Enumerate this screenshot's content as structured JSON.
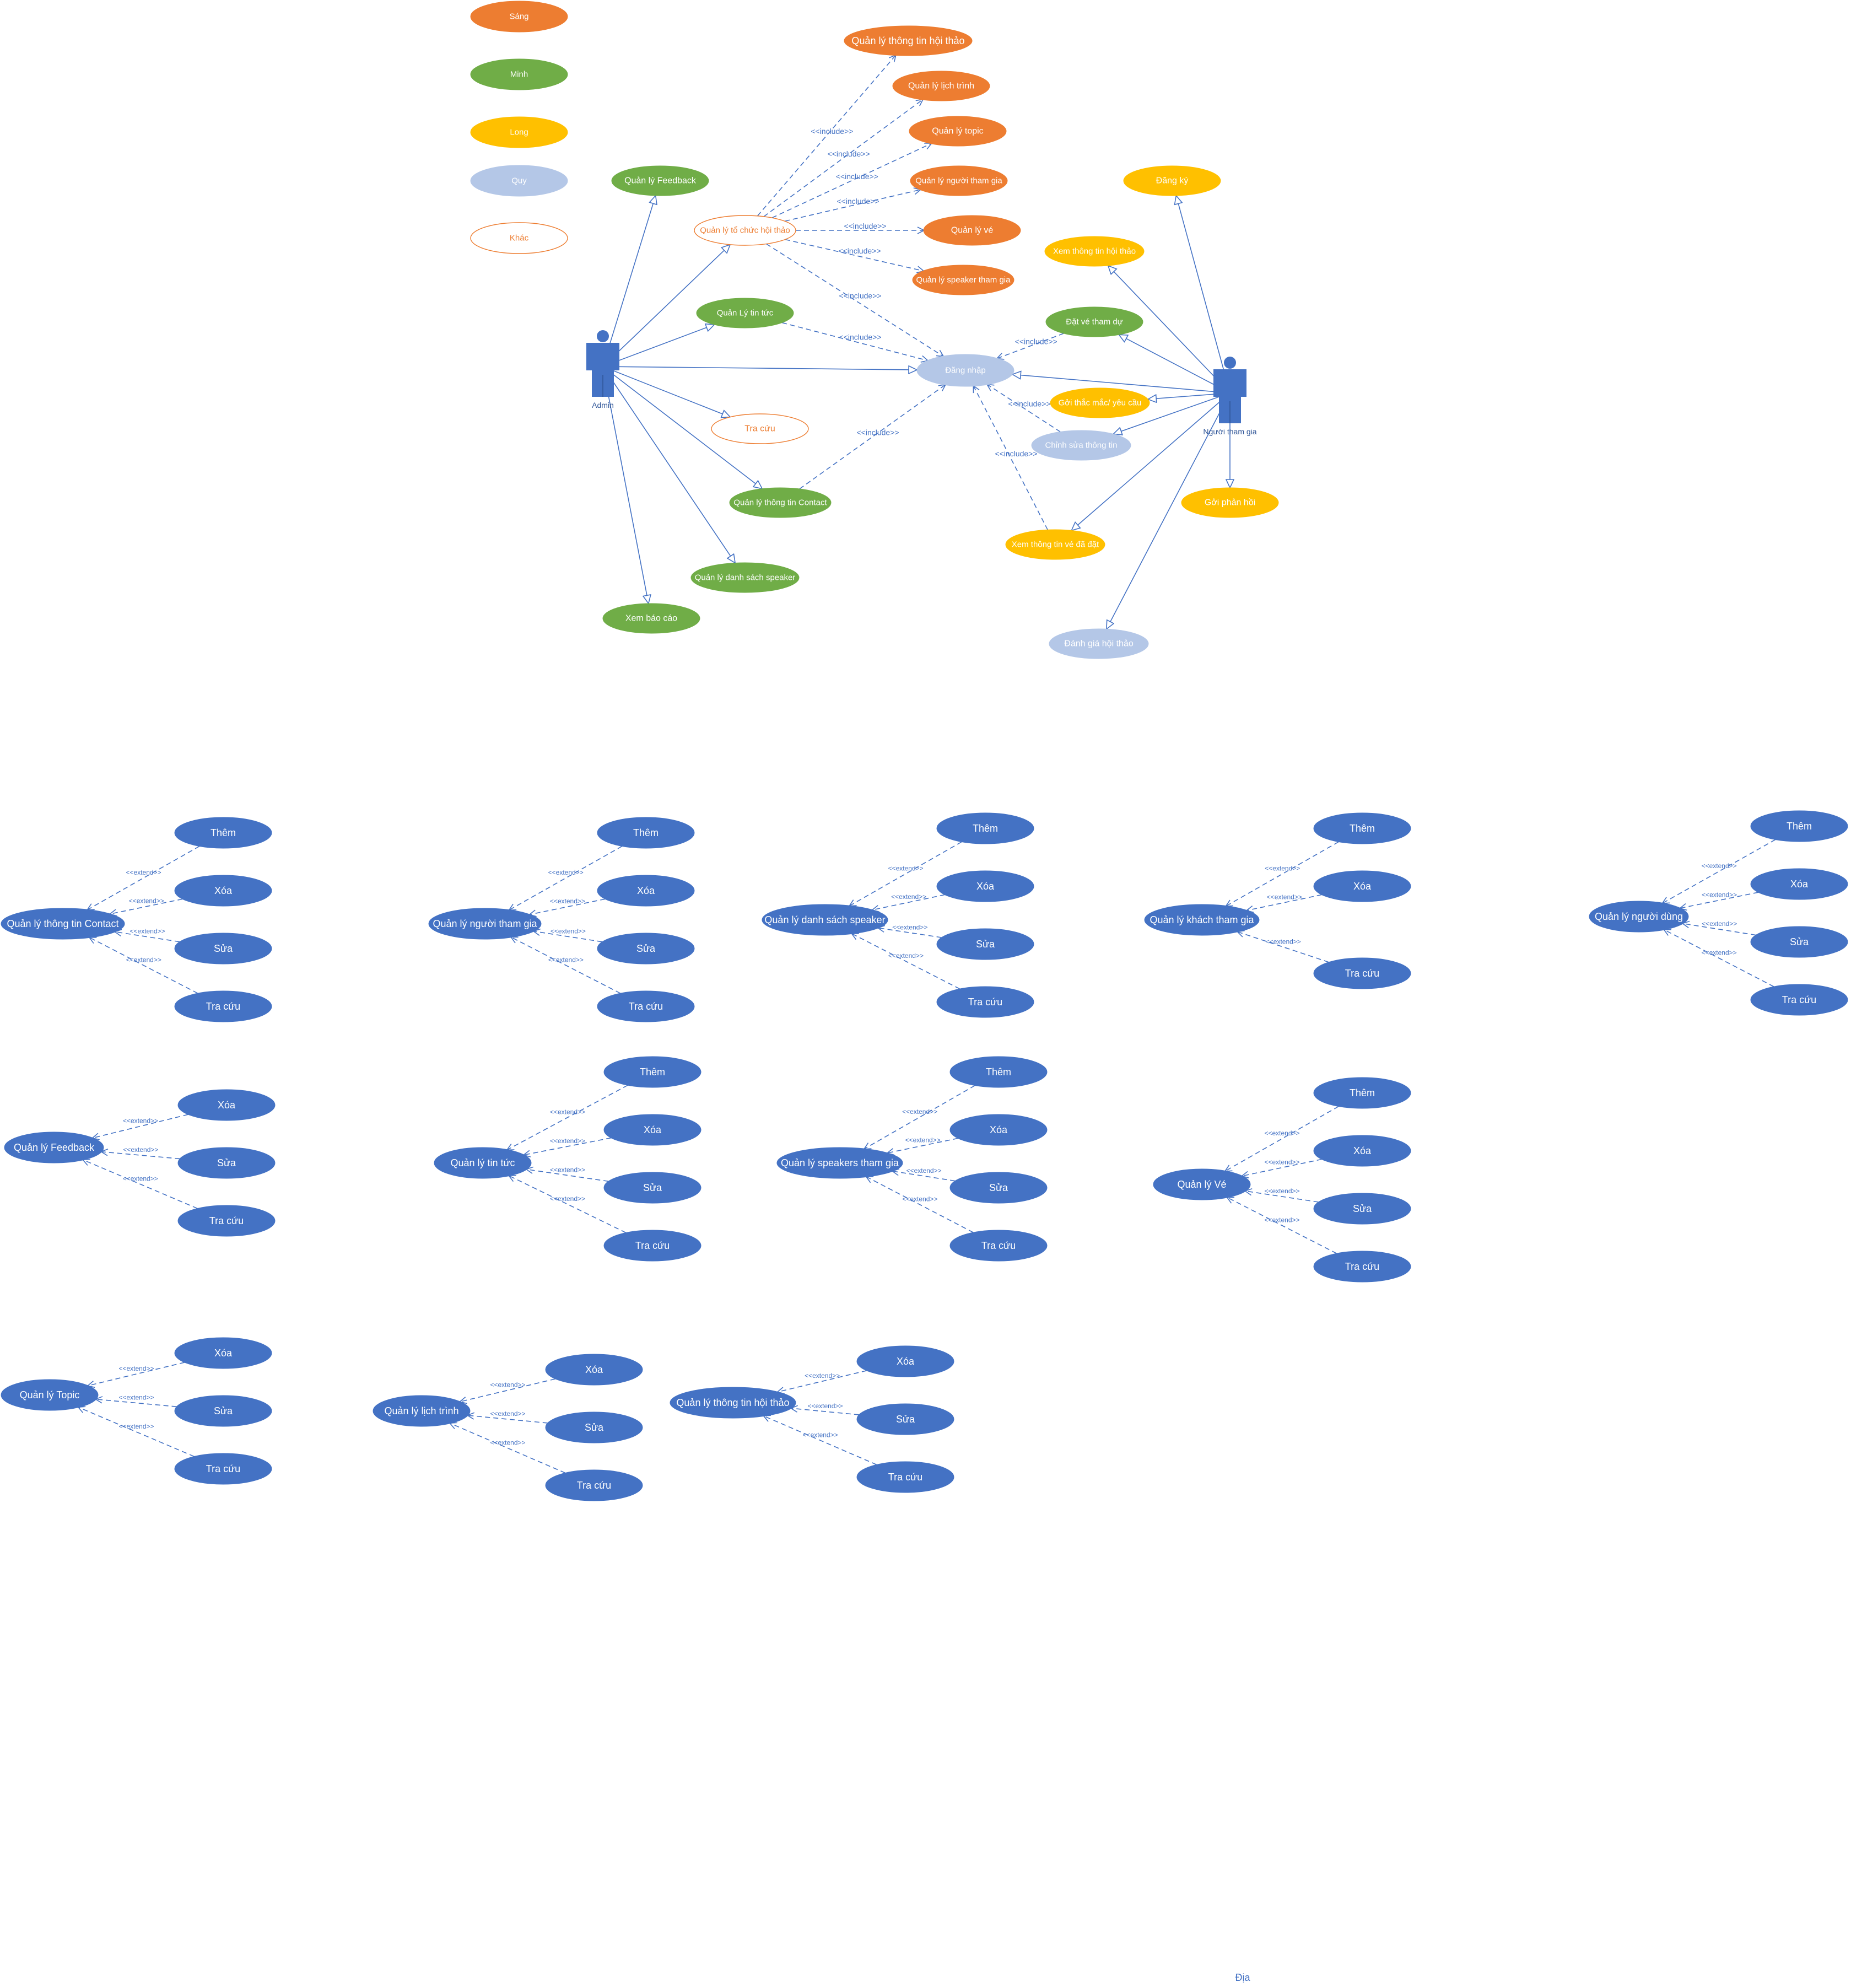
{
  "colors": {
    "orange": "#ED7D31",
    "green": "#70AD47",
    "gold": "#FFC000",
    "lightblue": "#B4C7E7",
    "blue": "#4472C4",
    "actor": "#4472C4",
    "line": "#4472C4",
    "white": "#FFFFFF"
  },
  "legend": [
    {
      "id": "legend-sang",
      "label": "Sáng",
      "color": "orange"
    },
    {
      "id": "legend-minh",
      "label": "Minh",
      "color": "green"
    },
    {
      "id": "legend-long",
      "label": "Long",
      "color": "gold"
    },
    {
      "id": "legend-quy",
      "label": "Quy",
      "color": "lightblue"
    },
    {
      "id": "legend-khac",
      "label": "Khác",
      "color": "outline"
    }
  ],
  "actors": [
    {
      "id": "admin",
      "label": "Admin"
    },
    {
      "id": "nguoi-tham-gia",
      "label": "Người tham gia"
    }
  ],
  "use_cases": [
    {
      "id": "ql-thong-tin-hoi-thao",
      "label": "Quản lý thông  tin hội thảo",
      "color": "orange"
    },
    {
      "id": "ql-lich-trinh",
      "label": "Quản lý lịch trình",
      "color": "orange"
    },
    {
      "id": "ql-topic",
      "label": "Quản lý topic",
      "color": "orange"
    },
    {
      "id": "ql-nguoi-tham-gia",
      "label": "Quản lý người tham gia",
      "color": "orange"
    },
    {
      "id": "ql-ve",
      "label": "Quản lý vé",
      "color": "orange"
    },
    {
      "id": "ql-speaker-tham-gia",
      "label": "Quản lý speaker tham gia",
      "color": "orange"
    },
    {
      "id": "ql-to-chuc-hoi-thao",
      "label": "Quản lý tổ chức hội thảo",
      "color": "outline"
    },
    {
      "id": "ql-feedback",
      "label": "Quản lý Feedback",
      "color": "green"
    },
    {
      "id": "ql-tin-tuc",
      "label": "Quản Lý tin tức",
      "color": "green"
    },
    {
      "id": "tra-cuu",
      "label": "Tra cứu",
      "color": "outline"
    },
    {
      "id": "ql-contact",
      "label": "Quản lý thông tin Contact",
      "color": "green"
    },
    {
      "id": "ql-danh-sach-speaker",
      "label": "Quản lý danh sách speaker",
      "color": "green"
    },
    {
      "id": "xem-bao-cao",
      "label": "Xem báo cáo",
      "color": "green"
    },
    {
      "id": "dang-nhap",
      "label": "Đăng nhập",
      "color": "lightblue"
    },
    {
      "id": "dang-ky",
      "label": "Đăng ký",
      "color": "gold"
    },
    {
      "id": "xem-thong-tin-hoi-thao",
      "label": "Xem thông tin hội thảo",
      "color": "gold"
    },
    {
      "id": "dat-ve-tham-du",
      "label": "Đặt vé tham dự",
      "color": "green"
    },
    {
      "id": "gui-thac-mac",
      "label": "Gởi thắc mắc/ yêu cầu",
      "color": "gold"
    },
    {
      "id": "chinh-sua-thong-tin",
      "label": "Chỉnh sửa thông tin",
      "color": "lightblue"
    },
    {
      "id": "gui-phan-hoi",
      "label": "Gởi phản hồi",
      "color": "gold"
    },
    {
      "id": "xem-thong-tin-ve",
      "label": "Xem thông tin vé đã đặt",
      "color": "gold"
    },
    {
      "id": "danh-gia-hoi-thao",
      "label": "Đánh giá hội thảo",
      "color": "lightblue"
    }
  ],
  "associations": [
    [
      "admin",
      "ql-feedback"
    ],
    [
      "admin",
      "ql-to-chuc-hoi-thao"
    ],
    [
      "admin",
      "ql-tin-tuc"
    ],
    [
      "admin",
      "dang-nhap"
    ],
    [
      "admin",
      "tra-cuu"
    ],
    [
      "admin",
      "ql-contact"
    ],
    [
      "admin",
      "ql-danh-sach-speaker"
    ],
    [
      "admin",
      "xem-bao-cao"
    ],
    [
      "nguoi-tham-gia",
      "dang-ky"
    ],
    [
      "nguoi-tham-gia",
      "xem-thong-tin-hoi-thao"
    ],
    [
      "nguoi-tham-gia",
      "dat-ve-tham-du"
    ],
    [
      "nguoi-tham-gia",
      "dang-nhap"
    ],
    [
      "nguoi-tham-gia",
      "gui-thac-mac"
    ],
    [
      "nguoi-tham-gia",
      "chinh-sua-thong-tin"
    ],
    [
      "nguoi-tham-gia",
      "gui-phan-hoi"
    ],
    [
      "nguoi-tham-gia",
      "xem-thong-tin-ve"
    ],
    [
      "nguoi-tham-gia",
      "danh-gia-hoi-thao"
    ]
  ],
  "include_label": "<<include>>",
  "extend_label": "<<extend>>",
  "includes": [
    [
      "ql-to-chuc-hoi-thao",
      "ql-thong-tin-hoi-thao"
    ],
    [
      "ql-to-chuc-hoi-thao",
      "ql-lich-trinh"
    ],
    [
      "ql-to-chuc-hoi-thao",
      "ql-topic"
    ],
    [
      "ql-to-chuc-hoi-thao",
      "ql-nguoi-tham-gia"
    ],
    [
      "ql-to-chuc-hoi-thao",
      "ql-ve"
    ],
    [
      "ql-to-chuc-hoi-thao",
      "ql-speaker-tham-gia"
    ],
    [
      "ql-to-chuc-hoi-thao",
      "dang-nhap"
    ],
    [
      "ql-tin-tuc",
      "dang-nhap"
    ],
    [
      "ql-contact",
      "dang-nhap"
    ],
    [
      "dat-ve-tham-du",
      "dang-nhap"
    ],
    [
      "chinh-sua-thong-tin",
      "dang-nhap"
    ],
    [
      "xem-thong-tin-ve",
      "dang-nhap"
    ]
  ],
  "extend_groups": [
    {
      "id": "grp-contact",
      "base": "Quản lý thông tin Contact",
      "items": [
        "Thêm",
        "Xóa",
        "Sửa",
        "Tra cứu"
      ]
    },
    {
      "id": "grp-nguoi-tham-gia",
      "base": "Quản lý người tham gia",
      "items": [
        "Thêm",
        "Xóa",
        "Sửa",
        "Tra cứu"
      ]
    },
    {
      "id": "grp-danh-sach-speaker",
      "base": "Quản lý danh sách speaker",
      "items": [
        "Thêm",
        "Xóa",
        "Sửa",
        "Tra cứu"
      ]
    },
    {
      "id": "grp-khach-tham-gia",
      "base": "Quản lý khách tham gia",
      "items": [
        "Thêm",
        "Xóa",
        "Tra cứu"
      ]
    },
    {
      "id": "grp-nguoi-dung",
      "base": "Quản lý người dùng",
      "items": [
        "Thêm",
        "Xóa",
        "Sửa",
        "Tra cứu"
      ]
    },
    {
      "id": "grp-feedback",
      "base": "Quản lý Feedback",
      "items": [
        "Xóa",
        "Sửa",
        "Tra cứu"
      ]
    },
    {
      "id": "grp-tin-tuc",
      "base": "Quản lý tin tức",
      "items": [
        "Thêm",
        "Xóa",
        "Sửa",
        "Tra cứu"
      ]
    },
    {
      "id": "grp-speakers-tham-gia",
      "base": "Quản lý speakers tham gia",
      "items": [
        "Thêm",
        "Xóa",
        "Sửa",
        "Tra cứu"
      ]
    },
    {
      "id": "grp-ve",
      "base": "Quản lý Vé",
      "items": [
        "Thêm",
        "Xóa",
        "Sửa",
        "Tra cứu"
      ]
    },
    {
      "id": "grp-topic",
      "base": "Quản lý Topic",
      "items": [
        "Xóa",
        "Sửa",
        "Tra cứu"
      ]
    },
    {
      "id": "grp-lich-trinh",
      "base": "Quản lý lịch trình",
      "items": [
        "Xóa",
        "Sửa",
        "Tra cứu"
      ]
    },
    {
      "id": "grp-thong-tin-hoi-thao",
      "base": "Quản lý thông tin hội thảo",
      "items": [
        "Xóa",
        "Sửa",
        "Tra cứu"
      ]
    }
  ],
  "footer_text": "Địa"
}
